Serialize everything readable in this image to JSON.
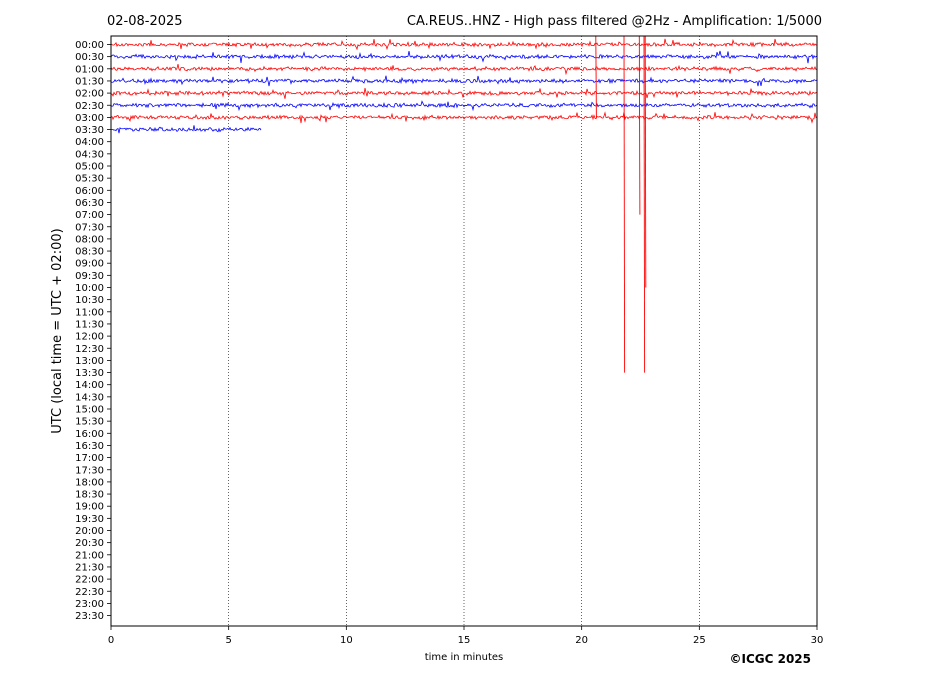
{
  "header": {
    "date": "02-08-2025",
    "title": "CA.REUS..HNZ - High pass filtered @2Hz - Amplification: 1/5000"
  },
  "footer": {
    "copyright": "©ICGC 2025"
  },
  "colors": {
    "odd_trace": "#ff0000",
    "even_trace": "#0000ff",
    "grid": "#000000"
  },
  "chart_data": {
    "type": "line",
    "title": "CA.REUS..HNZ - High pass filtered @2Hz - Amplification: 1/5000",
    "xlabel": "time in minutes",
    "ylabel": "UTC (local time = UTC + 02:00)",
    "xlim": [
      0,
      30
    ],
    "xticks": [
      0,
      5,
      10,
      15,
      20,
      25,
      30
    ],
    "grid": "vertical dotted lines at x ticks",
    "row_labels": [
      "00:00",
      "00:30",
      "01:00",
      "01:30",
      "02:00",
      "02:30",
      "03:00",
      "03:30",
      "04:00",
      "04:30",
      "05:00",
      "05:30",
      "06:00",
      "06:30",
      "07:00",
      "07:30",
      "08:00",
      "08:30",
      "09:00",
      "09:30",
      "10:00",
      "10:30",
      "11:00",
      "11:30",
      "12:00",
      "12:30",
      "13:00",
      "13:30",
      "14:00",
      "14:30",
      "15:00",
      "15:30",
      "16:00",
      "16:30",
      "17:00",
      "17:30",
      "18:00",
      "18:30",
      "19:00",
      "19:30",
      "20:00",
      "20:30",
      "21:00",
      "21:30",
      "22:00",
      "22:30",
      "23:00",
      "23:30"
    ],
    "series": [
      {
        "row": "00:00",
        "color": "red",
        "x_start": 0,
        "x_end": 30
      },
      {
        "row": "00:30",
        "color": "blue",
        "x_start": 0,
        "x_end": 30
      },
      {
        "row": "01:00",
        "color": "red",
        "x_start": 0,
        "x_end": 30
      },
      {
        "row": "01:30",
        "color": "blue",
        "x_start": 0,
        "x_end": 30
      },
      {
        "row": "02:00",
        "color": "red",
        "x_start": 0,
        "x_end": 30
      },
      {
        "row": "02:30",
        "color": "blue",
        "x_start": 0,
        "x_end": 30
      },
      {
        "row": "03:00",
        "color": "red",
        "x_start": 0,
        "x_end": 30
      },
      {
        "row": "03:30",
        "color": "blue",
        "x_start": 0,
        "x_end": 6.4
      }
    ],
    "events": [
      {
        "row": "00:00",
        "x": 20.6,
        "rows_span": 6
      },
      {
        "row": "00:00",
        "x": 21.8,
        "rows_span": 27
      },
      {
        "row": "00:00",
        "x": 22.45,
        "rows_span": 14
      },
      {
        "row": "00:00",
        "x": 22.65,
        "rows_span": 27
      },
      {
        "row": "00:00",
        "x": 22.7,
        "rows_span": 20
      }
    ]
  }
}
